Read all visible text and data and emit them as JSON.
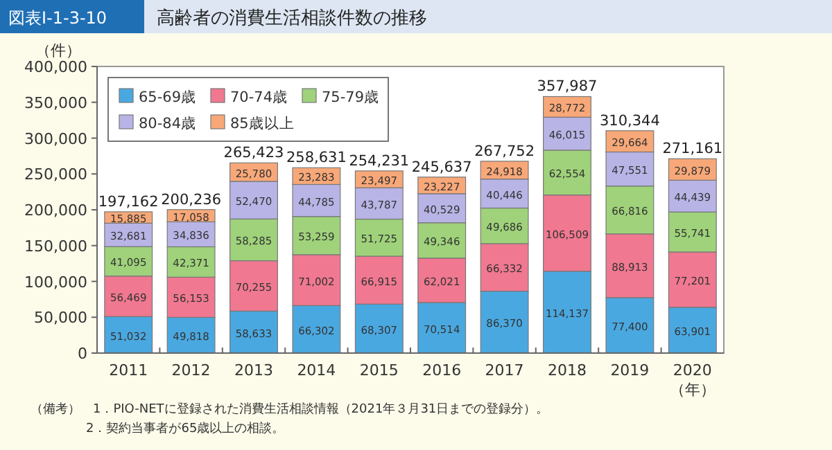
{
  "chart_data": {
    "type": "bar",
    "title": "高齢者の消費生活相談件数の推移",
    "ylabel": "（件）",
    "xlabel": "（年）",
    "annotations": [
      "図表Ⅰ-1-3-10",
      "（備考）　1．PIO-NETに登録された消費生活相談情報（2021年３月31日までの登録分）。",
      "2．契約当事者が65歳以上の相談。"
    ],
    "categories": [
      "2011",
      "2012",
      "2013",
      "2014",
      "2015",
      "2016",
      "2017",
      "2018",
      "2019",
      "2020"
    ],
    "stacked": true,
    "legend": "top left",
    "grid": false,
    "ylim": [
      0,
      400000
    ],
    "yticks": [
      {
        "value": 0,
        "label": "0"
      },
      {
        "value": 50000,
        "label": "50,000"
      },
      {
        "value": 100000,
        "label": "100,000"
      },
      {
        "value": 150000,
        "label": "150,000"
      },
      {
        "value": 200000,
        "label": "200,000"
      },
      {
        "value": 250000,
        "label": "250,000"
      },
      {
        "value": 300000,
        "label": "300,000"
      },
      {
        "value": 350000,
        "label": "350,000"
      },
      {
        "value": 400000,
        "label": "400,000"
      }
    ],
    "series": [
      {
        "name": "65-69歳",
        "color": "#4aa8e0",
        "values": [
          51032,
          49818,
          58633,
          66302,
          68307,
          70514,
          86370,
          114137,
          77400,
          63901
        ],
        "value_labels": [
          "51,032",
          "49,818",
          "58,633",
          "66,302",
          "68,307",
          "70,514",
          "86,370",
          "114,137",
          "77,400",
          "63,901"
        ]
      },
      {
        "name": "70-74歳",
        "color": "#f07890",
        "values": [
          56469,
          56153,
          70255,
          71002,
          66915,
          62021,
          66332,
          106509,
          88913,
          77201
        ],
        "value_labels": [
          "56,469",
          "56,153",
          "70,255",
          "71,002",
          "66,915",
          "62,021",
          "66,332",
          "106,509",
          "88,913",
          "77,201"
        ]
      },
      {
        "name": "75-79歳",
        "color": "#9fd27a",
        "values": [
          41095,
          42371,
          58285,
          53259,
          51725,
          49346,
          49686,
          62554,
          66816,
          55741
        ],
        "value_labels": [
          "41,095",
          "42,371",
          "58,285",
          "53,259",
          "51,725",
          "49,346",
          "49,686",
          "62,554",
          "66,816",
          "55,741"
        ]
      },
      {
        "name": "80-84歳",
        "color": "#b8b4e6",
        "values": [
          32681,
          34836,
          52470,
          44785,
          43787,
          40529,
          40446,
          46015,
          47551,
          44439
        ],
        "value_labels": [
          "32,681",
          "34,836",
          "52,470",
          "44,785",
          "43,787",
          "40,529",
          "40,446",
          "46,015",
          "47,551",
          "44,439"
        ]
      },
      {
        "name": "85歳以上",
        "color": "#f8a878",
        "values": [
          15885,
          17058,
          25780,
          23283,
          23497,
          23227,
          24918,
          28772,
          29664,
          29879
        ],
        "value_labels": [
          "15,885",
          "17,058",
          "25,780",
          "23,283",
          "23,497",
          "23,227",
          "24,918",
          "28,772",
          "29,664",
          "29,879"
        ]
      }
    ],
    "totals": [
      "197,162",
      "200,236",
      "265,423",
      "258,631",
      "254,231",
      "245,637",
      "267,752",
      "357,987",
      "310,344",
      "271,161"
    ]
  }
}
